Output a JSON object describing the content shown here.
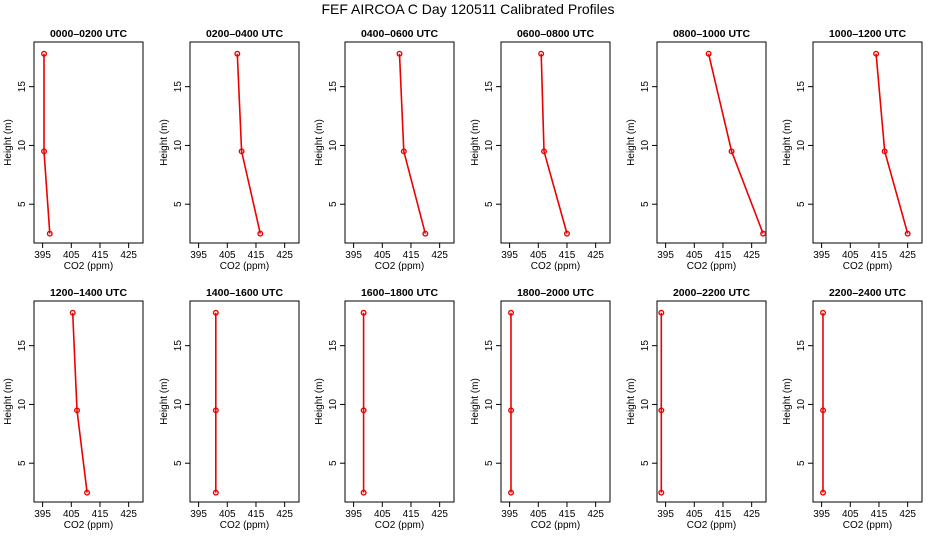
{
  "figure": {
    "title": "FEF AIRCOA C  Day 120511  Calibrated Profiles"
  },
  "chart_data": {
    "type": "line",
    "xlabel": "CO2 (ppm)",
    "ylabel": "Height (m)",
    "xlim": [
      392,
      430
    ],
    "ylim": [
      1.7,
      18.8
    ],
    "xticks": [
      395,
      405,
      415,
      425
    ],
    "yticks": [
      5,
      10,
      15
    ],
    "heights": [
      2.5,
      9.5,
      17.8
    ],
    "line_color": "#ee0000",
    "marker_color": "#ee0000",
    "panels": [
      {
        "title": "0000–0200 UTC",
        "co2": [
          397.5,
          395.5,
          395.5
        ]
      },
      {
        "title": "0200–0400 UTC",
        "co2": [
          416.5,
          410.0,
          408.5
        ]
      },
      {
        "title": "0400–0600 UTC",
        "co2": [
          420.0,
          412.5,
          411.0
        ]
      },
      {
        "title": "0600–0800 UTC",
        "co2": [
          415.0,
          407.0,
          406.0
        ]
      },
      {
        "title": "0800–1000 UTC",
        "co2": [
          429.0,
          418.0,
          410.0
        ]
      },
      {
        "title": "1000–1200 UTC",
        "co2": [
          425.0,
          417.0,
          414.0
        ]
      },
      {
        "title": "1200–1400 UTC",
        "co2": [
          410.5,
          407.0,
          405.5
        ]
      },
      {
        "title": "1400–1600 UTC",
        "co2": [
          401.0,
          401.0,
          401.0
        ]
      },
      {
        "title": "1600–1800 UTC",
        "co2": [
          398.5,
          398.5,
          398.5
        ]
      },
      {
        "title": "1800–2000 UTC",
        "co2": [
          395.5,
          395.5,
          395.5
        ]
      },
      {
        "title": "2000–2200 UTC",
        "co2": [
          393.5,
          393.5,
          393.5
        ]
      },
      {
        "title": "2200–2400 UTC",
        "co2": [
          395.5,
          395.5,
          395.5
        ]
      }
    ]
  }
}
